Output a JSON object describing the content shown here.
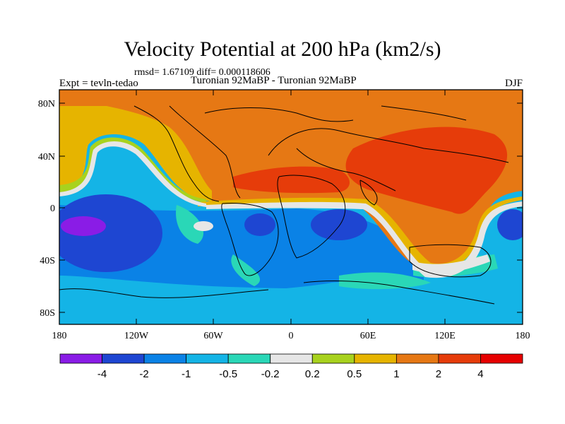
{
  "title": "Velocity Potential at 200 hPa (km2/s)",
  "stats": "rmsd= 1.67109 diff= 0.000118606",
  "left_label": "Expt = tevln-tedao",
  "center_label": "Turonian  92MaBP - Turonian  92MaBP",
  "right_label": "DJF",
  "lat_ticks": [
    "80N",
    "40N",
    "0",
    "40S",
    "80S"
  ],
  "lon_ticks": [
    "180",
    "120W",
    "60W",
    "0",
    "60E",
    "120E",
    "180"
  ],
  "colorbar": {
    "labels": [
      "-4",
      "-2",
      "-1",
      "-0.5",
      "-0.2",
      "0.2",
      "0.5",
      "1",
      "2",
      "4"
    ],
    "colors": [
      "#8a1ce6",
      "#1e46d2",
      "#0a82e6",
      "#14b4e6",
      "#2ad7b7",
      "#e6e6e6",
      "#a8d21e",
      "#e6b400",
      "#e67814",
      "#e63c0a",
      "#e60000"
    ]
  }
}
